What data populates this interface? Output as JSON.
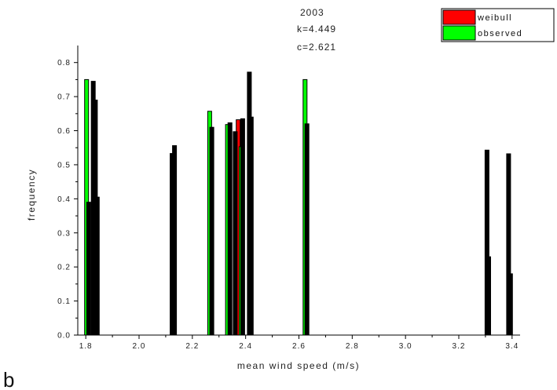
{
  "chart_data": {
    "type": "bar",
    "xlabel": "mean wind speed (m/s)",
    "ylabel": "frequency",
    "xlim": [
      1.77,
      3.43
    ],
    "ylim": [
      0.0,
      0.85
    ],
    "x_ticks": [
      "1.8",
      "2.0",
      "2.2",
      "2.4",
      "2.6",
      "2.8",
      "3.0",
      "3.2",
      "3.4"
    ],
    "y_ticks": [
      "0.0",
      "0.1",
      "0.2",
      "0.3",
      "0.4",
      "0.5",
      "0.6",
      "0.7",
      "0.8"
    ],
    "legend_position": "top-right",
    "annotations": [
      "2003",
      "k=4.449",
      "c=2.621"
    ],
    "panel_label": "b",
    "colors": {
      "weibull": "#ff0000",
      "observed": "#00ff00",
      "bar_outline": "#000000",
      "unlabeled": "#000000"
    },
    "series": [
      {
        "name": "weibull",
        "bars": [
          {
            "x": 2.372,
            "y": 0.632
          }
        ]
      },
      {
        "name": "observed",
        "bars": [
          {
            "x": 1.803,
            "y": 0.75
          },
          {
            "x": 2.265,
            "y": 0.657
          },
          {
            "x": 2.332,
            "y": 0.618
          },
          {
            "x": 2.383,
            "y": 0.553
          },
          {
            "x": 2.623,
            "y": 0.75
          }
        ]
      },
      {
        "name": "",
        "bars": [
          {
            "x": 1.811,
            "y": 0.39
          },
          {
            "x": 1.828,
            "y": 0.745
          },
          {
            "x": 1.836,
            "y": 0.69
          },
          {
            "x": 1.843,
            "y": 0.405
          },
          {
            "x": 2.124,
            "y": 0.533
          },
          {
            "x": 2.133,
            "y": 0.556
          },
          {
            "x": 2.273,
            "y": 0.61
          },
          {
            "x": 2.341,
            "y": 0.623
          },
          {
            "x": 2.361,
            "y": 0.597
          },
          {
            "x": 2.389,
            "y": 0.635
          },
          {
            "x": 2.414,
            "y": 0.772
          },
          {
            "x": 2.421,
            "y": 0.64
          },
          {
            "x": 2.63,
            "y": 0.62
          },
          {
            "x": 3.306,
            "y": 0.543
          },
          {
            "x": 3.312,
            "y": 0.23
          },
          {
            "x": 3.387,
            "y": 0.532
          },
          {
            "x": 3.394,
            "y": 0.18
          }
        ]
      }
    ]
  }
}
